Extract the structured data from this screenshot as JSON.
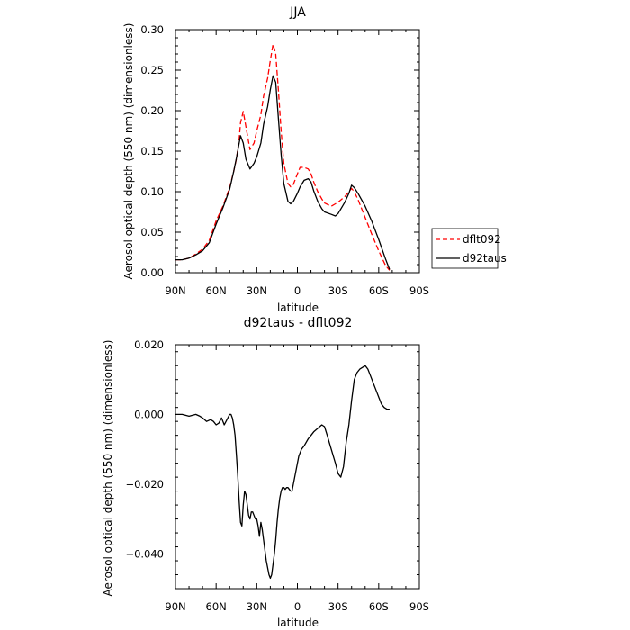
{
  "chart_data": [
    {
      "type": "line",
      "title": "JJA",
      "xlabel": "latitude",
      "ylabel": "Aerosol optical depth (550 nm) (dimensionless)",
      "x_ticks": [
        "90N",
        "60N",
        "30N",
        "0",
        "30S",
        "60S",
        "90S"
      ],
      "x_tick_values": [
        90,
        60,
        30,
        0,
        -30,
        -60,
        -90
      ],
      "xlim": [
        90,
        -90
      ],
      "ylim": [
        0,
        0.3
      ],
      "y_ticks": [
        0,
        0.05,
        0.1,
        0.15,
        0.2,
        0.25,
        0.3
      ],
      "y_tick_labels": [
        "0.00",
        "0.05",
        "0.10",
        "0.15",
        "0.20",
        "0.25",
        "0.30"
      ],
      "grid": false,
      "legend": "right",
      "series": [
        {
          "name": "dflt092",
          "color": "#ff0000",
          "dash": "dashed",
          "x": [
            90,
            85,
            80,
            75,
            70,
            65,
            60,
            55,
            50,
            47,
            45,
            43,
            42,
            40,
            38,
            35,
            32,
            30,
            27,
            25,
            22,
            20,
            18,
            16,
            14,
            12,
            10,
            7,
            5,
            3,
            0,
            -2,
            -5,
            -8,
            -10,
            -12,
            -15,
            -18,
            -20,
            -25,
            -28,
            -30,
            -35,
            -38,
            -40,
            -42,
            -45,
            -50,
            -55,
            -60,
            -65,
            -68
          ],
          "y": [
            0.016,
            0.016,
            0.018,
            0.023,
            0.029,
            0.04,
            0.064,
            0.082,
            0.105,
            0.125,
            0.141,
            0.165,
            0.185,
            0.199,
            0.18,
            0.152,
            0.16,
            0.175,
            0.195,
            0.218,
            0.24,
            0.262,
            0.282,
            0.27,
            0.225,
            0.175,
            0.135,
            0.11,
            0.106,
            0.109,
            0.122,
            0.13,
            0.13,
            0.128,
            0.122,
            0.112,
            0.1,
            0.091,
            0.086,
            0.082,
            0.085,
            0.087,
            0.094,
            0.1,
            0.104,
            0.1,
            0.089,
            0.068,
            0.047,
            0.027,
            0.009,
            0.003
          ]
        },
        {
          "name": "d92taus",
          "color": "#000000",
          "dash": "solid",
          "x": [
            90,
            85,
            80,
            75,
            70,
            65,
            60,
            55,
            50,
            47,
            45,
            43,
            42,
            40,
            38,
            35,
            32,
            30,
            27,
            25,
            22,
            20,
            18,
            16,
            14,
            12,
            10,
            7,
            5,
            3,
            0,
            -2,
            -5,
            -8,
            -10,
            -12,
            -15,
            -18,
            -20,
            -25,
            -28,
            -30,
            -35,
            -38,
            -40,
            -42,
            -45,
            -50,
            -55,
            -60,
            -65,
            -68
          ],
          "y": [
            0.016,
            0.016,
            0.018,
            0.022,
            0.027,
            0.037,
            0.06,
            0.08,
            0.103,
            0.125,
            0.142,
            0.16,
            0.169,
            0.16,
            0.14,
            0.128,
            0.135,
            0.143,
            0.16,
            0.183,
            0.205,
            0.226,
            0.243,
            0.235,
            0.19,
            0.146,
            0.11,
            0.088,
            0.085,
            0.088,
            0.098,
            0.106,
            0.114,
            0.116,
            0.112,
            0.101,
            0.088,
            0.079,
            0.075,
            0.072,
            0.07,
            0.073,
            0.087,
            0.098,
            0.108,
            0.105,
            0.097,
            0.082,
            0.063,
            0.041,
            0.017,
            0.004
          ]
        }
      ]
    },
    {
      "type": "line",
      "title": "d92taus - dflt092",
      "xlabel": "latitude",
      "ylabel": "Aerosol optical depth (550 nm) (dimensionless)",
      "x_ticks": [
        "90N",
        "60N",
        "30N",
        "0",
        "30S",
        "60S",
        "90S"
      ],
      "x_tick_values": [
        90,
        60,
        30,
        0,
        -30,
        -60,
        -90
      ],
      "xlim": [
        90,
        -90
      ],
      "ylim": [
        -0.05,
        0.02
      ],
      "y_ticks": [
        0.02,
        0.0,
        -0.02,
        -0.04
      ],
      "y_tick_labels": [
        "0.020",
        "0.000",
        "−0.020",
        "−0.040"
      ],
      "grid": false,
      "series": [
        {
          "name": "",
          "color": "#000000",
          "dash": "solid",
          "x": [
            90,
            85,
            80,
            75,
            72,
            70,
            67,
            64,
            62,
            60,
            58,
            56,
            54,
            52,
            50,
            49,
            48,
            47,
            46,
            45,
            44,
            43,
            42,
            41,
            40,
            39,
            38,
            37,
            36,
            35,
            34,
            33,
            32,
            31,
            30,
            29,
            28,
            27,
            26,
            25,
            24,
            23,
            22,
            21,
            20,
            19,
            18,
            17,
            16,
            15,
            14,
            13,
            12,
            11,
            10,
            9,
            8,
            7,
            6,
            5,
            4,
            3,
            2,
            1,
            0,
            -1,
            -2,
            -3,
            -5,
            -8,
            -10,
            -12,
            -15,
            -18,
            -20,
            -22,
            -25,
            -28,
            -30,
            -32,
            -34,
            -36,
            -38,
            -40,
            -42,
            -44,
            -46,
            -48,
            -50,
            -52,
            -54,
            -56,
            -58,
            -60,
            -62,
            -64,
            -66,
            -68
          ],
          "y": [
            0.0,
            0.0,
            -0.0005,
            0.0,
            -0.0005,
            -0.001,
            -0.002,
            -0.0015,
            -0.002,
            -0.003,
            -0.0025,
            -0.001,
            -0.003,
            -0.0015,
            0.0,
            0.0,
            -0.001,
            -0.003,
            -0.006,
            -0.012,
            -0.018,
            -0.025,
            -0.031,
            -0.032,
            -0.026,
            -0.022,
            -0.023,
            -0.026,
            -0.029,
            -0.03,
            -0.028,
            -0.028,
            -0.029,
            -0.03,
            -0.03,
            -0.032,
            -0.035,
            -0.031,
            -0.033,
            -0.036,
            -0.039,
            -0.042,
            -0.044,
            -0.046,
            -0.047,
            -0.046,
            -0.043,
            -0.04,
            -0.036,
            -0.031,
            -0.027,
            -0.024,
            -0.022,
            -0.021,
            -0.021,
            -0.0215,
            -0.021,
            -0.021,
            -0.0215,
            -0.022,
            -0.022,
            -0.02,
            -0.018,
            -0.016,
            -0.014,
            -0.012,
            -0.011,
            -0.01,
            -0.009,
            -0.007,
            -0.006,
            -0.005,
            -0.004,
            -0.003,
            -0.0035,
            -0.006,
            -0.01,
            -0.014,
            -0.017,
            -0.018,
            -0.015,
            -0.008,
            -0.003,
            0.004,
            0.01,
            0.012,
            0.013,
            0.0135,
            0.014,
            0.013,
            0.011,
            0.009,
            0.007,
            0.005,
            0.003,
            0.002,
            0.0015,
            0.0015
          ]
        }
      ]
    }
  ]
}
